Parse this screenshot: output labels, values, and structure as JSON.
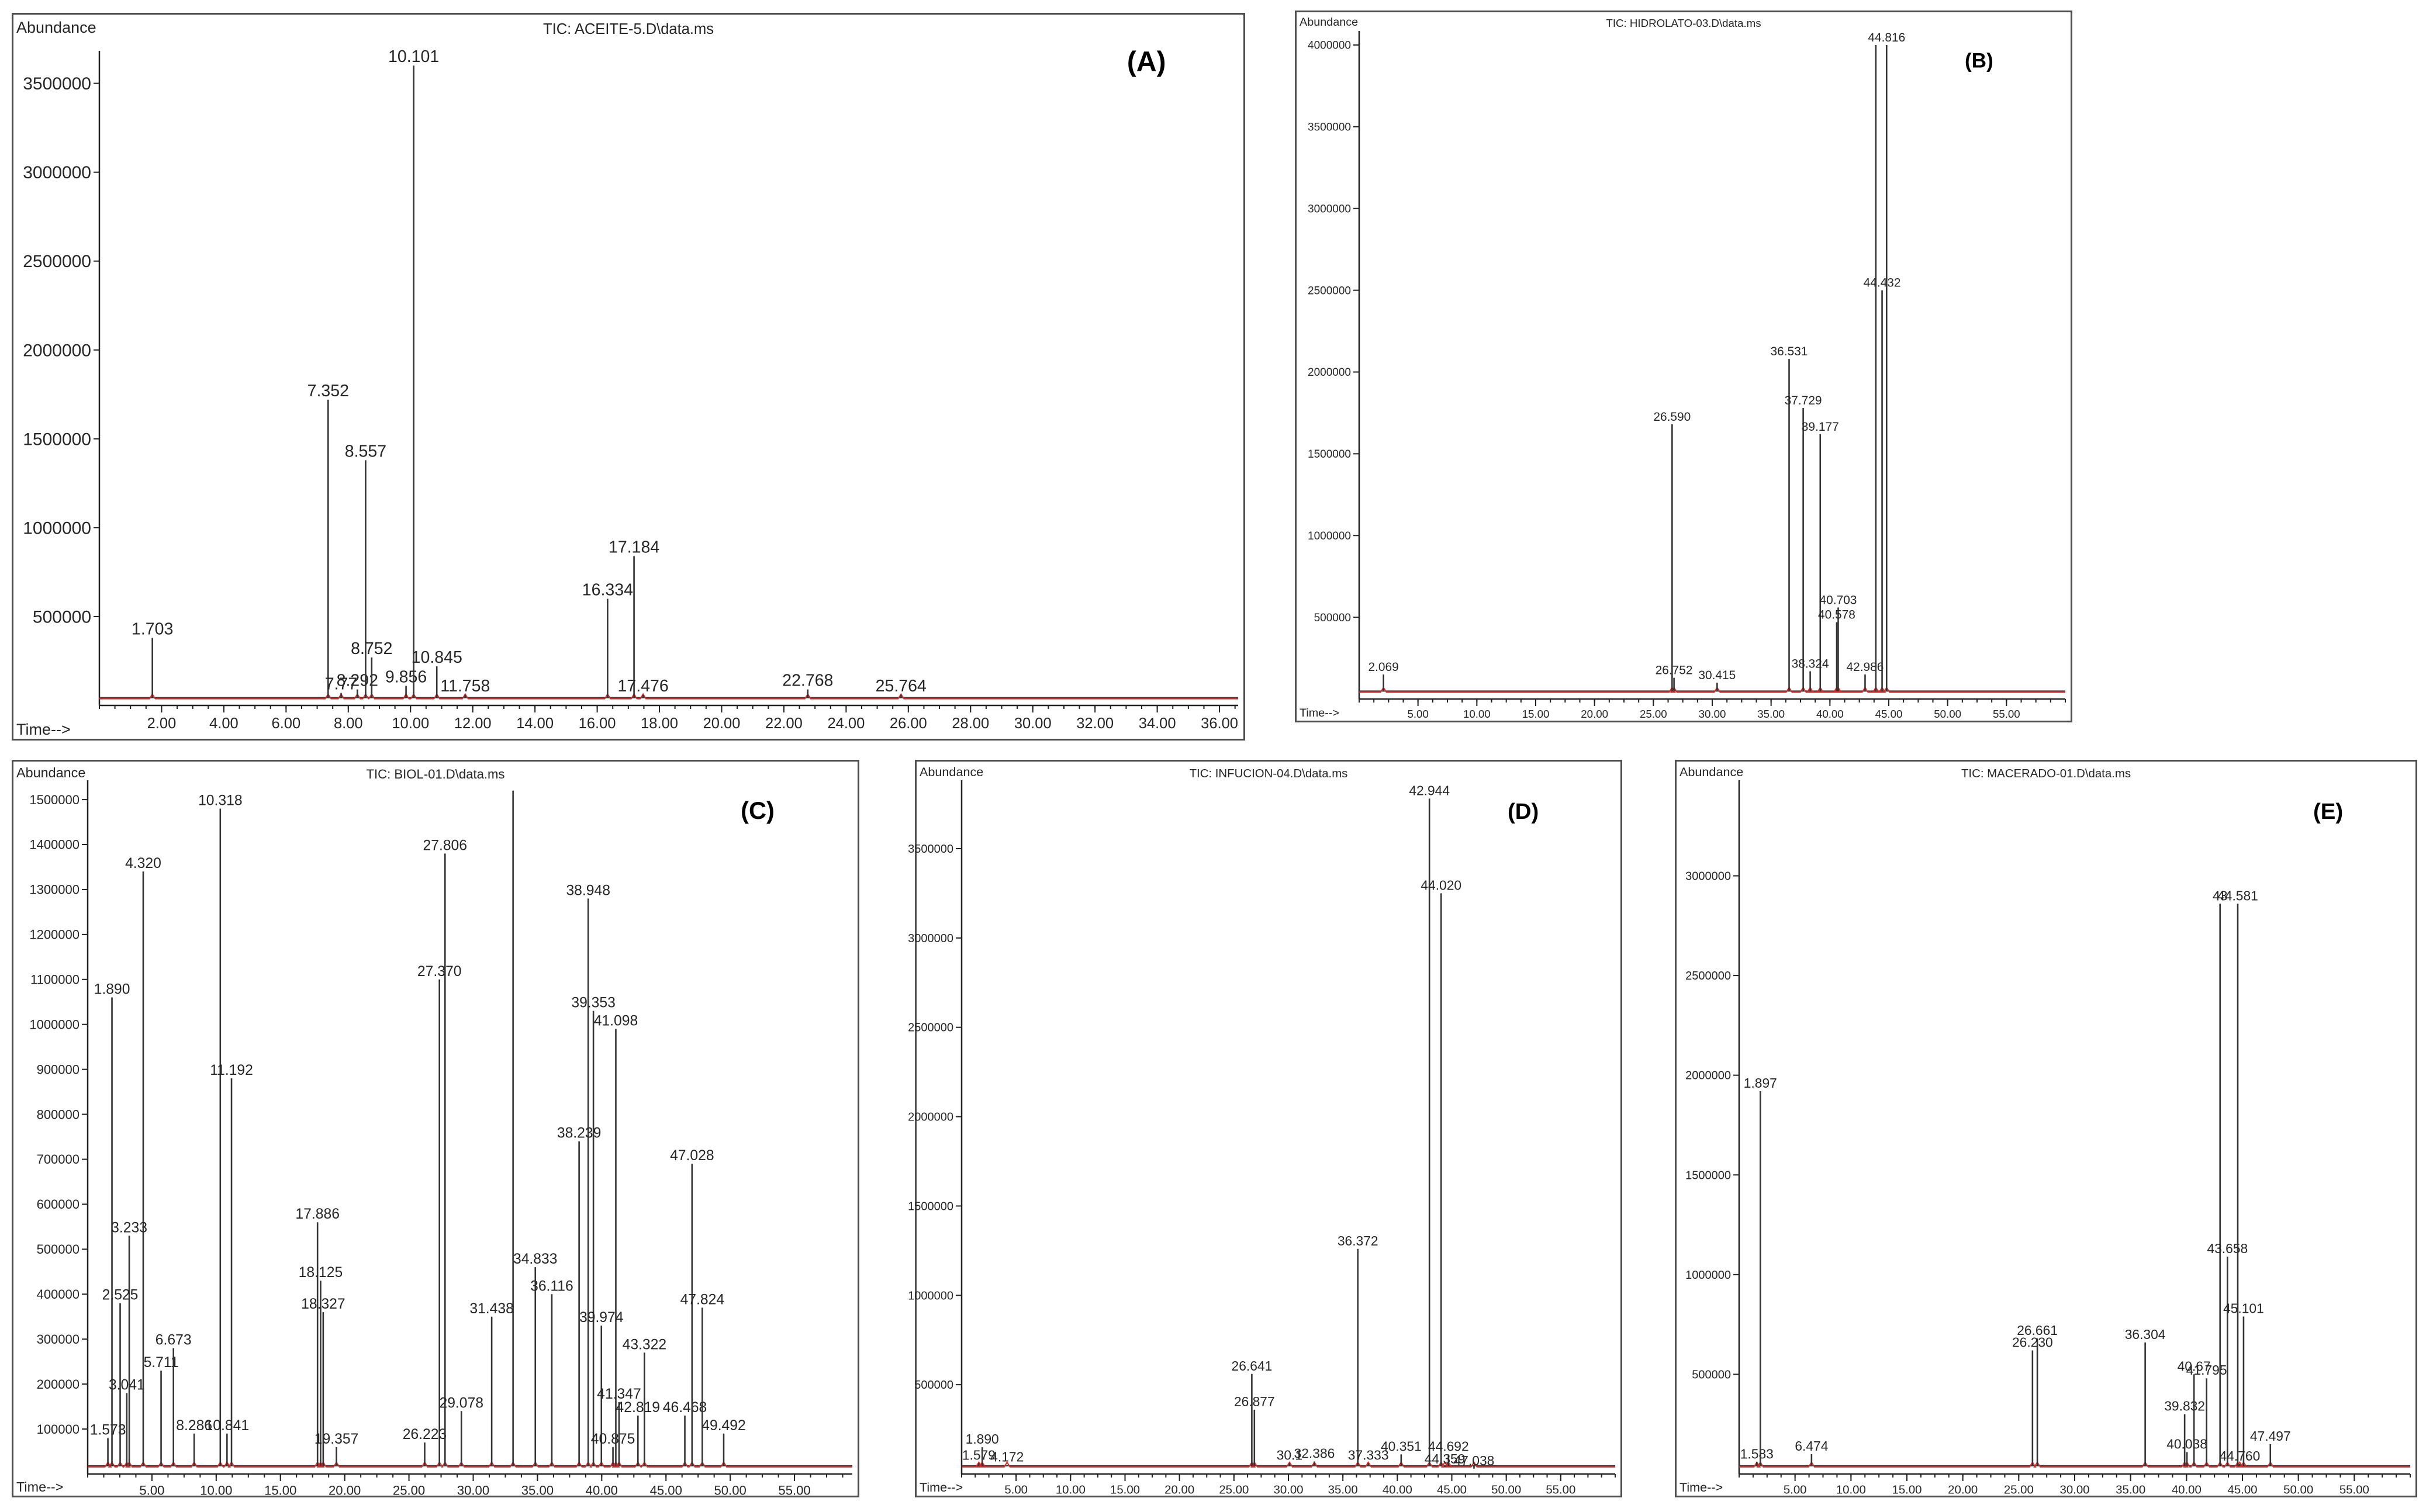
{
  "colors": {
    "trace": "#333333",
    "integration": "#d62a2a",
    "frame": "#4d4d4d",
    "background": "#ffffff"
  },
  "chart_data": [
    {
      "id": "A",
      "type": "line",
      "panel_label": "(A)",
      "title": "TIC: ACEITE-5.D\\data.ms",
      "ylabel": "Abundance",
      "xlabel": "Time-->",
      "xlim": [
        0,
        36.6
      ],
      "ylim": [
        0,
        3650000
      ],
      "x_ticks": [
        2,
        4,
        6,
        8,
        10,
        12,
        14,
        16,
        18,
        20,
        22,
        24,
        26,
        28,
        30,
        32,
        34,
        36
      ],
      "x_tick_labels": [
        "2.00",
        "4.00",
        "6.00",
        "8.00",
        "10.00",
        "12.00",
        "14.00",
        "16.00",
        "18.00",
        "20.00",
        "22.00",
        "24.00",
        "26.00",
        "28.00",
        "30.00",
        "32.00",
        "34.00",
        "36.00"
      ],
      "y_ticks": [
        500000,
        1000000,
        1500000,
        2000000,
        2500000,
        3000000,
        3500000
      ],
      "y_tick_labels": [
        "500000",
        "1000000",
        "1500000",
        "2000000",
        "2500000",
        "3000000",
        "3500000"
      ],
      "peaks": [
        {
          "x": 1.703,
          "y": 380000,
          "label": "1.703"
        },
        {
          "x": 7.352,
          "y": 1720000,
          "label": "7.352"
        },
        {
          "x": 7.77,
          "y": 70000,
          "label": "7.77"
        },
        {
          "x": 8.292,
          "y": 90000,
          "label": "8.292"
        },
        {
          "x": 8.557,
          "y": 1380000,
          "label": "8.557"
        },
        {
          "x": 8.752,
          "y": 270000,
          "label": "8.752"
        },
        {
          "x": 9.856,
          "y": 110000,
          "label": "9.856"
        },
        {
          "x": 10.101,
          "y": 3600000,
          "label": "10.101"
        },
        {
          "x": 10.845,
          "y": 220000,
          "label": "10.845"
        },
        {
          "x": 11.758,
          "y": 60000,
          "label": "11.758"
        },
        {
          "x": 16.334,
          "y": 600000,
          "label": "16.334"
        },
        {
          "x": 17.184,
          "y": 840000,
          "label": "17.184"
        },
        {
          "x": 17.476,
          "y": 60000,
          "label": "17.476"
        },
        {
          "x": 22.768,
          "y": 90000,
          "label": "22.768"
        },
        {
          "x": 25.764,
          "y": 60000,
          "label": "25.764"
        }
      ]
    },
    {
      "id": "B",
      "type": "line",
      "panel_label": "(B)",
      "title": "TIC: HIDROLATO-03.D\\data.ms",
      "ylabel": "Abundance",
      "xlabel": "Time-->",
      "xlim": [
        0,
        60
      ],
      "ylim": [
        0,
        4050000
      ],
      "x_ticks": [
        5,
        10,
        15,
        20,
        25,
        30,
        35,
        40,
        45,
        50,
        55
      ],
      "x_tick_labels": [
        "5.00",
        "10.00",
        "15.00",
        "20.00",
        "25.00",
        "30.00",
        "35.00",
        "40.00",
        "45.00",
        "50.00",
        "55.00"
      ],
      "y_ticks": [
        500000,
        1000000,
        1500000,
        2000000,
        2500000,
        3000000,
        3500000,
        4000000
      ],
      "y_tick_labels": [
        "500000",
        "1000000",
        "1500000",
        "2000000",
        "2500000",
        "3000000",
        "3500000",
        "4000000"
      ],
      "peaks": [
        {
          "x": 2.069,
          "y": 150000,
          "label": "2.069"
        },
        {
          "x": 26.59,
          "y": 1680000,
          "label": "26.590"
        },
        {
          "x": 26.752,
          "y": 130000,
          "label": "26.752"
        },
        {
          "x": 30.415,
          "y": 100000,
          "label": "30.415"
        },
        {
          "x": 36.531,
          "y": 2080000,
          "label": "36.531"
        },
        {
          "x": 37.729,
          "y": 1780000,
          "label": "37.729"
        },
        {
          "x": 39.177,
          "y": 1620000,
          "label": "39.177"
        },
        {
          "x": 40.703,
          "y": 560000,
          "label": "40.703"
        },
        {
          "x": 40.578,
          "y": 470000,
          "label": "40.578"
        },
        {
          "x": 38.324,
          "y": 170000,
          "label": "38.324"
        },
        {
          "x": 42.986,
          "y": 150000,
          "label": "42.986"
        },
        {
          "x": 44.432,
          "y": 2500000,
          "label": "44.432"
        },
        {
          "x": 43.9,
          "y": 4000000,
          "label": ""
        },
        {
          "x": 44.816,
          "y": 4000000,
          "label": "44.816"
        }
      ]
    },
    {
      "id": "C",
      "type": "line",
      "panel_label": "(C)",
      "title": "TIC: BIOL-01.D\\data.ms",
      "ylabel": "Abundance",
      "xlabel": "Time-->",
      "xlim": [
        0,
        59.5
      ],
      "ylim": [
        0,
        1530000
      ],
      "x_ticks": [
        5,
        10,
        15,
        20,
        25,
        30,
        35,
        40,
        45,
        50,
        55
      ],
      "x_tick_labels": [
        "5.00",
        "10.00",
        "15.00",
        "20.00",
        "25.00",
        "30.00",
        "35.00",
        "40.00",
        "45.00",
        "50.00",
        "55.00"
      ],
      "y_ticks": [
        100000,
        200000,
        300000,
        400000,
        500000,
        600000,
        700000,
        800000,
        900000,
        1000000,
        1100000,
        1200000,
        1300000,
        1400000,
        1500000
      ],
      "y_tick_labels": [
        "100000",
        "200000",
        "300000",
        "400000",
        "500000",
        "600000",
        "700000",
        "800000",
        "900000",
        "1000000",
        "1100000",
        "1200000",
        "1300000",
        "1400000",
        "1500000"
      ],
      "peaks": [
        {
          "x": 1.573,
          "y": 80000,
          "label": "1.573"
        },
        {
          "x": 1.89,
          "y": 1060000,
          "label": "1.890"
        },
        {
          "x": 2.525,
          "y": 380000,
          "label": "2.525"
        },
        {
          "x": 3.041,
          "y": 180000,
          "label": "3.041"
        },
        {
          "x": 3.233,
          "y": 530000,
          "label": "3.233"
        },
        {
          "x": 4.32,
          "y": 1340000,
          "label": "4.320"
        },
        {
          "x": 5.711,
          "y": 230000,
          "label": "5.711"
        },
        {
          "x": 6.673,
          "y": 280000,
          "label": "6.673"
        },
        {
          "x": 8.286,
          "y": 90000,
          "label": "8.286"
        },
        {
          "x": 10.318,
          "y": 1480000,
          "label": "10.318"
        },
        {
          "x": 10.841,
          "y": 90000,
          "label": "10.841"
        },
        {
          "x": 11.192,
          "y": 880000,
          "label": "11.192"
        },
        {
          "x": 17.886,
          "y": 560000,
          "label": "17.886"
        },
        {
          "x": 18.125,
          "y": 430000,
          "label": "18.125"
        },
        {
          "x": 18.327,
          "y": 360000,
          "label": "18.327"
        },
        {
          "x": 19.357,
          "y": 60000,
          "label": "19.357"
        },
        {
          "x": 26.223,
          "y": 70000,
          "label": "26.223"
        },
        {
          "x": 27.37,
          "y": 1100000,
          "label": "27.370"
        },
        {
          "x": 27.806,
          "y": 1380000,
          "label": "27.806"
        },
        {
          "x": 29.078,
          "y": 140000,
          "label": "29.078"
        },
        {
          "x": 31.438,
          "y": 350000,
          "label": "31.438"
        },
        {
          "x": 33.1,
          "y": 1520000,
          "label": ""
        },
        {
          "x": 34.833,
          "y": 460000,
          "label": "34.833"
        },
        {
          "x": 36.116,
          "y": 400000,
          "label": "36.116"
        },
        {
          "x": 38.239,
          "y": 740000,
          "label": "38.239"
        },
        {
          "x": 38.948,
          "y": 1280000,
          "label": "38.948"
        },
        {
          "x": 39.353,
          "y": 1030000,
          "label": "39.353"
        },
        {
          "x": 39.974,
          "y": 330000,
          "label": "39.974"
        },
        {
          "x": 40.875,
          "y": 60000,
          "label": "40.875"
        },
        {
          "x": 41.098,
          "y": 990000,
          "label": "41.098"
        },
        {
          "x": 41.347,
          "y": 160000,
          "label": "41.347"
        },
        {
          "x": 42.819,
          "y": 130000,
          "label": "42.819"
        },
        {
          "x": 43.322,
          "y": 270000,
          "label": "43.322"
        },
        {
          "x": 46.468,
          "y": 130000,
          "label": "46.468"
        },
        {
          "x": 47.028,
          "y": 690000,
          "label": "47.028"
        },
        {
          "x": 47.824,
          "y": 370000,
          "label": "47.824"
        },
        {
          "x": 49.492,
          "y": 90000,
          "label": "49.492"
        }
      ]
    },
    {
      "id": "D",
      "type": "line",
      "panel_label": "(D)",
      "title": "TIC: INFUCION-04.D\\data.ms",
      "ylabel": "Abundance",
      "xlabel": "Time-->",
      "xlim": [
        0,
        60
      ],
      "ylim": [
        0,
        3850000
      ],
      "x_ticks": [
        5,
        10,
        15,
        20,
        25,
        30,
        35,
        40,
        45,
        50,
        55
      ],
      "x_tick_labels": [
        "5.00",
        "10.00",
        "15.00",
        "20.00",
        "25.00",
        "30.00",
        "35.00",
        "40.00",
        "45.00",
        "50.00",
        "55.00"
      ],
      "y_ticks": [
        500000,
        1000000,
        1500000,
        2000000,
        2500000,
        3000000,
        3500000
      ],
      "y_tick_labels": [
        "500000",
        "1000000",
        "1500000",
        "2000000",
        "2500000",
        "3000000",
        "3500000"
      ],
      "peaks": [
        {
          "x": 1.89,
          "y": 150000,
          "label": "1.890"
        },
        {
          "x": 1.579,
          "y": 60000,
          "label": "1.579"
        },
        {
          "x": 4.172,
          "y": 50000,
          "label": "4.172"
        },
        {
          "x": 26.641,
          "y": 560000,
          "label": "26.641"
        },
        {
          "x": 26.877,
          "y": 360000,
          "label": "26.877"
        },
        {
          "x": 30.1,
          "y": 60000,
          "label": "30.1"
        },
        {
          "x": 32.386,
          "y": 70000,
          "label": "32.386"
        },
        {
          "x": 36.372,
          "y": 1260000,
          "label": "36.372"
        },
        {
          "x": 37.333,
          "y": 60000,
          "label": "37.333"
        },
        {
          "x": 40.351,
          "y": 110000,
          "label": "40.351"
        },
        {
          "x": 42.944,
          "y": 3780000,
          "label": "42.944"
        },
        {
          "x": 44.02,
          "y": 3250000,
          "label": "44.020"
        },
        {
          "x": 44.692,
          "y": 110000,
          "label": "44.692"
        },
        {
          "x": 44.359,
          "y": 40000,
          "label": "44.359"
        },
        {
          "x": 47.038,
          "y": 30000,
          "label": "47.038"
        }
      ]
    },
    {
      "id": "E",
      "type": "line",
      "panel_label": "(E)",
      "title": "TIC: MACERADO-01.D\\data.ms",
      "ylabel": "Abundance",
      "xlabel": "Time-->",
      "xlim": [
        0,
        60
      ],
      "ylim": [
        0,
        3450000
      ],
      "x_ticks": [
        5,
        10,
        15,
        20,
        25,
        30,
        35,
        40,
        45,
        50,
        55
      ],
      "x_tick_labels": [
        "5.00",
        "10.00",
        "15.00",
        "20.00",
        "25.00",
        "30.00",
        "35.00",
        "40.00",
        "45.00",
        "50.00",
        "55.00"
      ],
      "y_ticks": [
        500000,
        1000000,
        1500000,
        2000000,
        2500000,
        3000000
      ],
      "y_tick_labels": [
        "500000",
        "1000000",
        "1500000",
        "2000000",
        "2500000",
        "3000000"
      ],
      "peaks": [
        {
          "x": 1.583,
          "y": 60000,
          "label": "1.583"
        },
        {
          "x": 1.897,
          "y": 1920000,
          "label": "1.897"
        },
        {
          "x": 6.474,
          "y": 100000,
          "label": "6.474"
        },
        {
          "x": 26.23,
          "y": 620000,
          "label": "26.230"
        },
        {
          "x": 26.661,
          "y": 680000,
          "label": "26.661"
        },
        {
          "x": 36.304,
          "y": 660000,
          "label": "36.304"
        },
        {
          "x": 39.832,
          "y": 300000,
          "label": "39.832"
        },
        {
          "x": 40.038,
          "y": 110000,
          "label": "40.038"
        },
        {
          "x": 40.67,
          "y": 500000,
          "label": "40.67"
        },
        {
          "x": 41.795,
          "y": 480000,
          "label": "41.795"
        },
        {
          "x": 43.0,
          "y": 2860000,
          "label": "43"
        },
        {
          "x": 43.658,
          "y": 1090000,
          "label": "43.658"
        },
        {
          "x": 44.581,
          "y": 2860000,
          "label": "44.581"
        },
        {
          "x": 45.101,
          "y": 790000,
          "label": "45.101"
        },
        {
          "x": 44.76,
          "y": 50000,
          "label": "44.760"
        },
        {
          "x": 47.497,
          "y": 150000,
          "label": "47.497"
        }
      ]
    }
  ]
}
